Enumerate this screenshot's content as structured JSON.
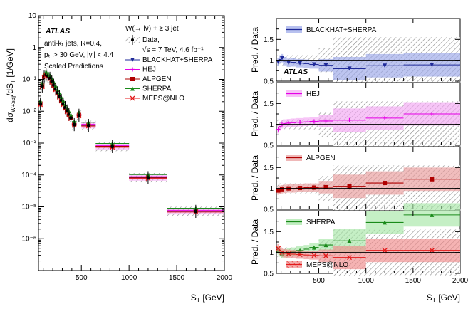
{
  "chart_data": [
    {
      "type": "scatter",
      "title": "",
      "xlabel": "S_T [GeV]",
      "ylabel": "dσ_{W+≥3j}/dS_T [1/GeV]",
      "xlim": [
        50,
        2000
      ],
      "ylim": [
        1e-07,
        10
      ],
      "yscale": "log",
      "x_ticks": [
        "500",
        "1000",
        "1500",
        "2000"
      ],
      "y_ticks": [
        "10",
        "1",
        "10⁻¹",
        "10⁻²",
        "10⁻³",
        "10⁻⁴",
        "10⁻⁵",
        "10⁻⁶"
      ],
      "notes": {
        "experiment": "ATLAS",
        "jets": "anti-kₜ jets, R=0.4,",
        "cuts": "pₜʲ > 30 GeV, |yʲ| < 4.4",
        "scaled": "Scaled Predictions",
        "process": "W(→ lν) + ≥ 3 jet",
        "data_line1": "Data,",
        "data_line2": "√s = 7 TeV, 4.6 fb⁻¹"
      },
      "data_bins": [
        {
          "lo": 60,
          "hi": 80,
          "value": 0.017
        },
        {
          "lo": 80,
          "hi": 100,
          "value": 0.062
        },
        {
          "lo": 100,
          "hi": 120,
          "value": 0.118
        },
        {
          "lo": 120,
          "hi": 140,
          "value": 0.138
        },
        {
          "lo": 140,
          "hi": 160,
          "value": 0.128
        },
        {
          "lo": 160,
          "hi": 180,
          "value": 0.108
        },
        {
          "lo": 180,
          "hi": 200,
          "value": 0.086
        },
        {
          "lo": 200,
          "hi": 220,
          "value": 0.066
        },
        {
          "lo": 220,
          "hi": 240,
          "value": 0.05
        },
        {
          "lo": 240,
          "hi": 260,
          "value": 0.038
        },
        {
          "lo": 260,
          "hi": 280,
          "value": 0.029
        },
        {
          "lo": 280,
          "hi": 300,
          "value": 0.022
        },
        {
          "lo": 300,
          "hi": 320,
          "value": 0.017
        },
        {
          "lo": 320,
          "hi": 340,
          "value": 0.013
        },
        {
          "lo": 340,
          "hi": 360,
          "value": 0.0102
        },
        {
          "lo": 360,
          "hi": 380,
          "value": 0.0079
        },
        {
          "lo": 380,
          "hi": 400,
          "value": 0.0062
        },
        {
          "lo": 400,
          "hi": 450,
          "value": 0.0038
        },
        {
          "lo": 450,
          "hi": 500,
          "value": 0.0075
        },
        {
          "lo": 500,
          "hi": 650,
          "value": 0.0036
        },
        {
          "lo": 650,
          "hi": 1000,
          "value": 0.00078
        },
        {
          "lo": 1000,
          "hi": 1400,
          "value": 8.2e-05
        },
        {
          "lo": 1400,
          "hi": 2000,
          "value": 7.2e-06
        }
      ],
      "series": [
        {
          "name": "BLACKHAT+SHERPA",
          "color": "#1f2a99",
          "marker": "triangle-down",
          "ratio_ref": 1.0
        },
        {
          "name": "HEJ",
          "color": "#e600e6",
          "marker": "cross",
          "ratio_ref": 1.0
        },
        {
          "name": "ALPGEN",
          "color": "#b00000",
          "marker": "square",
          "ratio_ref": 1.0
        },
        {
          "name": "SHERPA",
          "color": "#1a8a1a",
          "marker": "triangle-up",
          "ratio_ref": 1.0
        },
        {
          "name": "MEPS@NLO",
          "color": "#e31a1a",
          "marker": "x",
          "ratio_ref": 1.0
        }
      ],
      "legend": {
        "data_label": "Data,",
        "position": "top-right"
      }
    },
    {
      "type": "scatter",
      "title": "",
      "xlabel": "S_T [GeV]",
      "ylabel": "Pred. / Data",
      "xlim": [
        50,
        2000
      ],
      "ylim": [
        0.5,
        2.0
      ],
      "y_ticks": [
        "0.5",
        "1",
        "1.5"
      ],
      "x_ticks": [
        "500",
        "1000",
        "1500",
        "2000"
      ],
      "panels": [
        {
          "label": "BLACKHAT+SHERPA",
          "atlas_tag": "ATLAS",
          "color": "#1f2a99",
          "band_color": "#9aa6e8",
          "ratios": [
            {
              "lo": 60,
              "hi": 80,
              "v": 0.96
            },
            {
              "lo": 80,
              "hi": 100,
              "v": 1.02
            },
            {
              "lo": 100,
              "hi": 120,
              "v": 1.05
            },
            {
              "lo": 120,
              "hi": 160,
              "v": 0.98
            },
            {
              "lo": 160,
              "hi": 200,
              "v": 0.94
            },
            {
              "lo": 200,
              "hi": 260,
              "v": 0.95
            },
            {
              "lo": 260,
              "hi": 340,
              "v": 0.93
            },
            {
              "lo": 340,
              "hi": 400,
              "v": 0.92
            },
            {
              "lo": 400,
              "hi": 500,
              "v": 0.9
            },
            {
              "lo": 500,
              "hi": 650,
              "v": 0.88
            },
            {
              "lo": 650,
              "hi": 1000,
              "v": 0.8
            },
            {
              "lo": 1000,
              "hi": 1400,
              "v": 0.87
            },
            {
              "lo": 1400,
              "hi": 2000,
              "v": 0.89
            }
          ]
        },
        {
          "label": "HEJ",
          "color": "#e600e6",
          "band_color": "#f3a6f3",
          "ratios": [
            {
              "lo": 60,
              "hi": 80,
              "v": 0.88
            },
            {
              "lo": 80,
              "hi": 100,
              "v": 0.95
            },
            {
              "lo": 100,
              "hi": 120,
              "v": 1.0
            },
            {
              "lo": 120,
              "hi": 160,
              "v": 1.02
            },
            {
              "lo": 160,
              "hi": 200,
              "v": 1.03
            },
            {
              "lo": 200,
              "hi": 260,
              "v": 1.04
            },
            {
              "lo": 260,
              "hi": 340,
              "v": 1.05
            },
            {
              "lo": 340,
              "hi": 400,
              "v": 1.06
            },
            {
              "lo": 400,
              "hi": 500,
              "v": 1.07
            },
            {
              "lo": 500,
              "hi": 650,
              "v": 1.08
            },
            {
              "lo": 650,
              "hi": 1000,
              "v": 1.1
            },
            {
              "lo": 1000,
              "hi": 1400,
              "v": 1.15
            },
            {
              "lo": 1400,
              "hi": 2000,
              "v": 1.25
            }
          ]
        },
        {
          "label": "ALPGEN",
          "color": "#b00000",
          "band_color": "#e89a9a",
          "ratios": [
            {
              "lo": 60,
              "hi": 80,
              "v": 0.95
            },
            {
              "lo": 80,
              "hi": 100,
              "v": 0.97
            },
            {
              "lo": 100,
              "hi": 120,
              "v": 0.98
            },
            {
              "lo": 120,
              "hi": 160,
              "v": 0.99
            },
            {
              "lo": 160,
              "hi": 200,
              "v": 1.0
            },
            {
              "lo": 200,
              "hi": 260,
              "v": 1.0
            },
            {
              "lo": 260,
              "hi": 340,
              "v": 1.01
            },
            {
              "lo": 340,
              "hi": 400,
              "v": 1.02
            },
            {
              "lo": 400,
              "hi": 500,
              "v": 1.02
            },
            {
              "lo": 500,
              "hi": 650,
              "v": 1.03
            },
            {
              "lo": 650,
              "hi": 1000,
              "v": 1.05
            },
            {
              "lo": 1000,
              "hi": 1400,
              "v": 1.13
            },
            {
              "lo": 1400,
              "hi": 2000,
              "v": 1.22
            }
          ]
        },
        {
          "label": "SHERPA",
          "color": "#1a8a1a",
          "band_color": "#a6e6a6",
          "ratios": [
            {
              "lo": 60,
              "hi": 80,
              "v": 1.05
            },
            {
              "lo": 80,
              "hi": 100,
              "v": 1.0
            },
            {
              "lo": 100,
              "hi": 120,
              "v": 0.97
            },
            {
              "lo": 120,
              "hi": 160,
              "v": 0.98
            },
            {
              "lo": 160,
              "hi": 200,
              "v": 1.0
            },
            {
              "lo": 200,
              "hi": 260,
              "v": 1.02
            },
            {
              "lo": 260,
              "hi": 340,
              "v": 1.05
            },
            {
              "lo": 340,
              "hi": 400,
              "v": 1.08
            },
            {
              "lo": 400,
              "hi": 500,
              "v": 1.12
            },
            {
              "lo": 500,
              "hi": 650,
              "v": 1.18
            },
            {
              "lo": 650,
              "hi": 1000,
              "v": 1.28
            },
            {
              "lo": 1000,
              "hi": 1400,
              "v": 1.72
            },
            {
              "lo": 1400,
              "hi": 2000,
              "v": 1.9
            }
          ]
        },
        {
          "label": "MEPS@NLO",
          "color": "#e31a1a",
          "band_color": "#f08a8a",
          "ratios": [
            {
              "lo": 60,
              "hi": 80,
              "v": 1.1
            },
            {
              "lo": 80,
              "hi": 100,
              "v": 1.05
            },
            {
              "lo": 100,
              "hi": 120,
              "v": 1.0
            },
            {
              "lo": 120,
              "hi": 160,
              "v": 0.98
            },
            {
              "lo": 160,
              "hi": 200,
              "v": 0.97
            },
            {
              "lo": 200,
              "hi": 260,
              "v": 0.96
            },
            {
              "lo": 260,
              "hi": 340,
              "v": 0.95
            },
            {
              "lo": 340,
              "hi": 400,
              "v": 0.94
            },
            {
              "lo": 400,
              "hi": 500,
              "v": 0.93
            },
            {
              "lo": 500,
              "hi": 650,
              "v": 0.92
            },
            {
              "lo": 650,
              "hi": 1000,
              "v": 0.88
            },
            {
              "lo": 1000,
              "hi": 1400,
              "v": 1.05
            },
            {
              "lo": 1400,
              "hi": 2000,
              "v": 1.05
            }
          ]
        }
      ]
    }
  ]
}
